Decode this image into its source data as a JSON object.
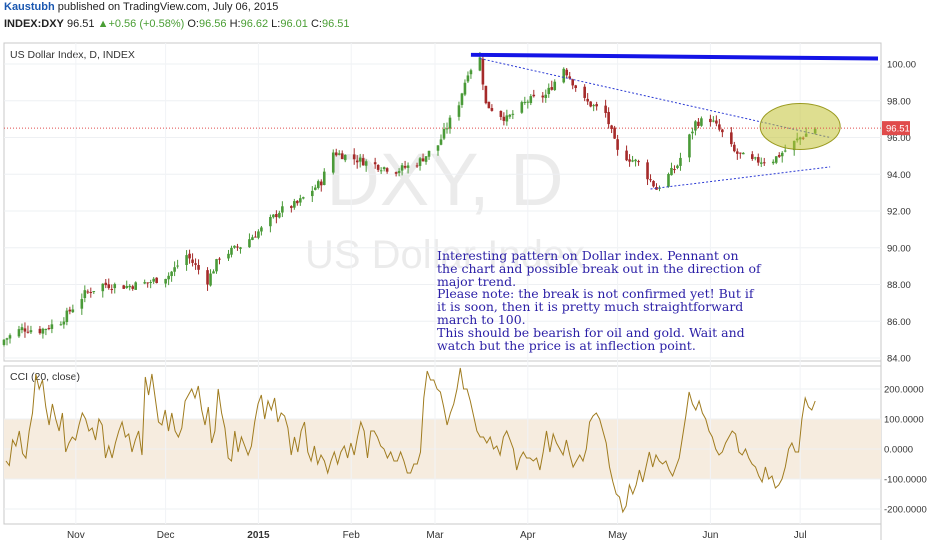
{
  "header": {
    "author": "Kaustubh",
    "published_text": " published on TradingView.com, July 06, 2015",
    "symbol": "INDEX:DXY",
    "last": "96.51",
    "change": "+0.56 (+0.58%)",
    "open_label": "O:",
    "open": "96.56",
    "high_label": "H:",
    "high": "96.62",
    "low_label": "L:",
    "low": "96.01",
    "close_label": "C:",
    "close": "96.51"
  },
  "chart_data": [
    {
      "type": "candlestick",
      "title": "US Dollar Index, D, INDEX",
      "watermark_symbol": "DXY, D",
      "watermark_name": "US Dollar Index",
      "y_ticks": [
        "100.00",
        "98.00",
        "96.00",
        "94.00",
        "92.00",
        "90.00",
        "88.00",
        "86.00",
        "84.00"
      ],
      "ylim": [
        84,
        101.5
      ],
      "last_price_label": "96.51",
      "x_labels": [
        "Nov",
        "Dec",
        "2015",
        "Feb",
        "Mar",
        "Apr",
        "May",
        "Jun",
        "Jul"
      ],
      "x_label_dates": [
        "2014-11-01",
        "2014-12-01",
        "2015-01-01",
        "2015-02-01",
        "2015-03-01",
        "2015-04-01",
        "2015-05-01",
        "2015-06-01",
        "2015-07-01"
      ],
      "x_range": [
        "2014-10-08",
        "2015-07-28"
      ],
      "close_keyframes": [
        [
          "2014-10-08",
          85.0
        ],
        [
          "2014-10-14",
          85.6
        ],
        [
          "2014-10-20",
          85.5
        ],
        [
          "2014-10-27",
          86.0
        ],
        [
          "2014-11-04",
          87.5
        ],
        [
          "2014-11-10",
          88.0
        ],
        [
          "2014-11-18",
          87.9
        ],
        [
          "2014-11-25",
          88.1
        ],
        [
          "2014-12-02",
          88.5
        ],
        [
          "2014-12-08",
          89.6
        ],
        [
          "2014-12-15",
          88.2
        ],
        [
          "2014-12-19",
          89.5
        ],
        [
          "2014-12-26",
          90.1
        ],
        [
          "2015-01-02",
          91.0
        ],
        [
          "2015-01-08",
          92.0
        ],
        [
          "2015-01-14",
          92.4
        ],
        [
          "2015-01-22",
          93.6
        ],
        [
          "2015-01-26",
          95.2
        ],
        [
          "2015-02-03",
          94.8
        ],
        [
          "2015-02-09",
          94.5
        ],
        [
          "2015-02-16",
          94.2
        ],
        [
          "2015-02-23",
          94.6
        ],
        [
          "2015-03-02",
          95.6
        ],
        [
          "2015-03-09",
          97.9
        ],
        [
          "2015-03-12",
          99.6
        ],
        [
          "2015-03-16",
          100.3
        ],
        [
          "2015-03-18",
          97.8
        ],
        [
          "2015-03-25",
          97.0
        ],
        [
          "2015-04-01",
          98.0
        ],
        [
          "2015-04-07",
          98.3
        ],
        [
          "2015-04-13",
          99.8
        ],
        [
          "2015-04-20",
          98.0
        ],
        [
          "2015-04-27",
          97.3
        ],
        [
          "2015-05-01",
          95.2
        ],
        [
          "2015-05-08",
          94.6
        ],
        [
          "2015-05-14",
          93.2
        ],
        [
          "2015-05-21",
          94.5
        ],
        [
          "2015-05-27",
          96.8
        ],
        [
          "2015-06-01",
          97.0
        ],
        [
          "2015-06-05",
          96.2
        ],
        [
          "2015-06-09",
          95.2
        ],
        [
          "2015-06-15",
          94.7
        ],
        [
          "2015-06-22",
          94.8
        ],
        [
          "2015-06-26",
          95.3
        ],
        [
          "2015-07-01",
          96.0
        ],
        [
          "2015-07-06",
          96.51
        ]
      ],
      "annotations": {
        "resistance_line": [
          [
            "2015-03-13",
            100.5
          ],
          [
            "2015-07-27",
            100.3
          ]
        ],
        "upper_trendline": [
          [
            "2015-03-16",
            100.3
          ],
          [
            "2015-07-11",
            96.0
          ]
        ],
        "lower_trendline": [
          [
            "2015-05-12",
            93.2
          ],
          [
            "2015-07-11",
            94.4
          ]
        ],
        "ellipse_center": [
          "2015-07-01",
          96.6
        ],
        "note_lines": [
          "Interesting pattern on Dollar index. Pennant on",
          "the chart and possible break out in the direction of",
          "major trend.",
          "Please note: the break is not confirmed yet! But if",
          "it is soon, then it is pretty much straightforward",
          "march to 100.",
          "This should be bearish for oil and gold. Wait and",
          "watch but the price is at inflection point."
        ]
      }
    },
    {
      "type": "line",
      "title": "CCI (20, close)",
      "y_ticks": [
        "200.0000",
        "100.0000",
        "0.0000",
        "-100.0000",
        "-200.0000"
      ],
      "ylim": [
        -240,
        280
      ],
      "band": [
        -100,
        100
      ],
      "values": [
        -40,
        -55,
        30,
        10,
        60,
        -15,
        -30,
        60,
        120,
        250,
        200,
        230,
        140,
        80,
        150,
        100,
        60,
        120,
        -10,
        20,
        40,
        30,
        80,
        120,
        100,
        60,
        70,
        30,
        100,
        80,
        -30,
        10,
        -30,
        20,
        60,
        90,
        40,
        50,
        -10,
        30,
        60,
        -20,
        240,
        180,
        250,
        170,
        90,
        80,
        130,
        60,
        120,
        60,
        40,
        70,
        160,
        180,
        200,
        170,
        210,
        130,
        80,
        140,
        20,
        60,
        200,
        120,
        70,
        -30,
        -40,
        60,
        -10,
        40,
        10,
        -20,
        10,
        90,
        150,
        180,
        100,
        160,
        130,
        170,
        90,
        120,
        110,
        70,
        -20,
        40,
        -10,
        60,
        90,
        -10,
        -40,
        10,
        -50,
        -20,
        -40,
        -80,
        -40,
        -10,
        -50,
        -10,
        10,
        -30,
        20,
        -20,
        40,
        90,
        60,
        -30,
        60,
        60,
        40,
        10,
        0,
        -30,
        -10,
        -40,
        -40,
        -10,
        -40,
        -80,
        -80,
        -50,
        -50,
        -10,
        170,
        260,
        230,
        230,
        200,
        190,
        140,
        80,
        120,
        150,
        200,
        270,
        200,
        200,
        160,
        110,
        60,
        40,
        40,
        20,
        40,
        0,
        10,
        -20,
        40,
        60,
        30,
        0,
        -70,
        -30,
        -10,
        -30,
        -30,
        -40,
        -30,
        -70,
        -10,
        60,
        -10,
        50,
        20,
        0,
        -20,
        30,
        -20,
        -60,
        -40,
        -20,
        -40,
        0,
        90,
        110,
        120,
        100,
        60,
        20,
        -60,
        -110,
        -150,
        -160,
        -210,
        -190,
        -120,
        -150,
        -120,
        -70,
        -110,
        -60,
        -10,
        -60,
        -20,
        -40,
        -50,
        -40,
        -70,
        -90,
        -60,
        -30,
        40,
        110,
        190,
        150,
        130,
        160,
        120,
        100,
        60,
        40,
        0,
        -20,
        -10,
        20,
        40,
        60,
        50,
        -10,
        -20,
        0,
        -30,
        -50,
        -60,
        -90,
        -110,
        -60,
        -100,
        -90,
        -130,
        -120,
        -100,
        -60,
        0,
        20,
        -10,
        -10,
        100,
        170,
        140,
        130,
        160
      ]
    }
  ],
  "colors": {
    "up": "#4a9a38",
    "down": "#a52a2a",
    "trendline": "#2b3ad4",
    "resistance": "#1414e6",
    "cci_line": "#a07c20",
    "cci_band": "#f6ecdf",
    "price_tag": "#e04b4b",
    "ellipse_fill": "#c2c235",
    "note_text": "#2a1ea6",
    "author": "#1a57b0"
  }
}
